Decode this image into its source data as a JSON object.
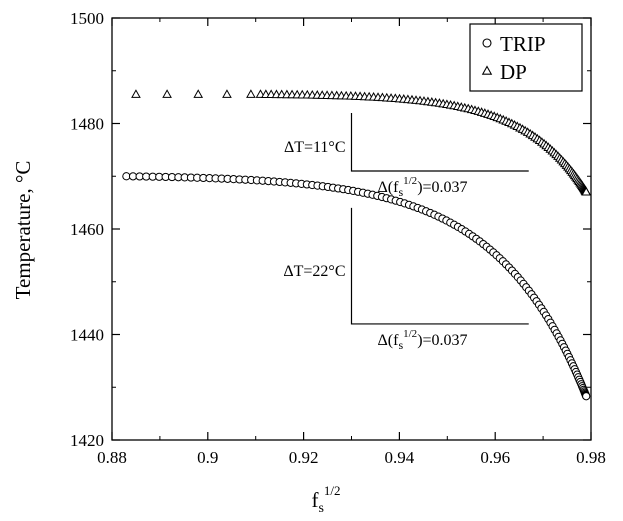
{
  "chart_data": {
    "type": "scatter",
    "title": "",
    "xlabel": "f",
    "xlabel_sub": "s",
    "xlabel_sup": "1/2",
    "ylabel": "Temperature, °C",
    "xlim": [
      0.88,
      0.98
    ],
    "ylim": [
      1420,
      1500
    ],
    "xticks": [
      0.88,
      0.9,
      0.92,
      0.94,
      0.96,
      0.98
    ],
    "xtick_labels": [
      "0.88",
      "0.9",
      "0.92",
      "0.94",
      "0.96",
      "0.98"
    ],
    "yticks": [
      1420,
      1440,
      1460,
      1480,
      1500
    ],
    "ytick_labels": [
      "1420",
      "1440",
      "1460",
      "1480",
      "1500"
    ],
    "grid": false,
    "legend_position": "top-right",
    "series": [
      {
        "name": "TRIP",
        "marker": "circle",
        "color": "#000000",
        "x_start": 0.883,
        "x_end": 0.979,
        "y_start": 1470.0,
        "y_end": 1428.3,
        "y_at_x_start_of_slope": 1465.0,
        "count": 125
      },
      {
        "name": "DP",
        "marker": "triangle",
        "color": "#000000",
        "x_start": 0.885,
        "x_end": 0.979,
        "y_start": 1485.5,
        "y_end": 1467.0,
        "y_at_x_start_of_slope": 1482.0,
        "count": 110
      }
    ],
    "annotations": [
      {
        "type": "slope",
        "name": "DP",
        "x1": 0.93,
        "x2": 0.967,
        "y_top": 1482.0,
        "y_base": 1471.0,
        "dT_label": "ΔT=11°C",
        "df_label_prefix": "Δ(f",
        "df_label_sub": "s",
        "df_label_sup": "1/2",
        "df_label_suffix": ")=0.037"
      },
      {
        "type": "slope",
        "name": "TRIP",
        "x1": 0.93,
        "x2": 0.967,
        "y_top": 1464.0,
        "y_base": 1442.0,
        "dT_label": "ΔT=22°C",
        "df_label_prefix": "Δ(f",
        "df_label_sub": "s",
        "df_label_sup": "1/2",
        "df_label_suffix": ")=0.037"
      }
    ]
  }
}
